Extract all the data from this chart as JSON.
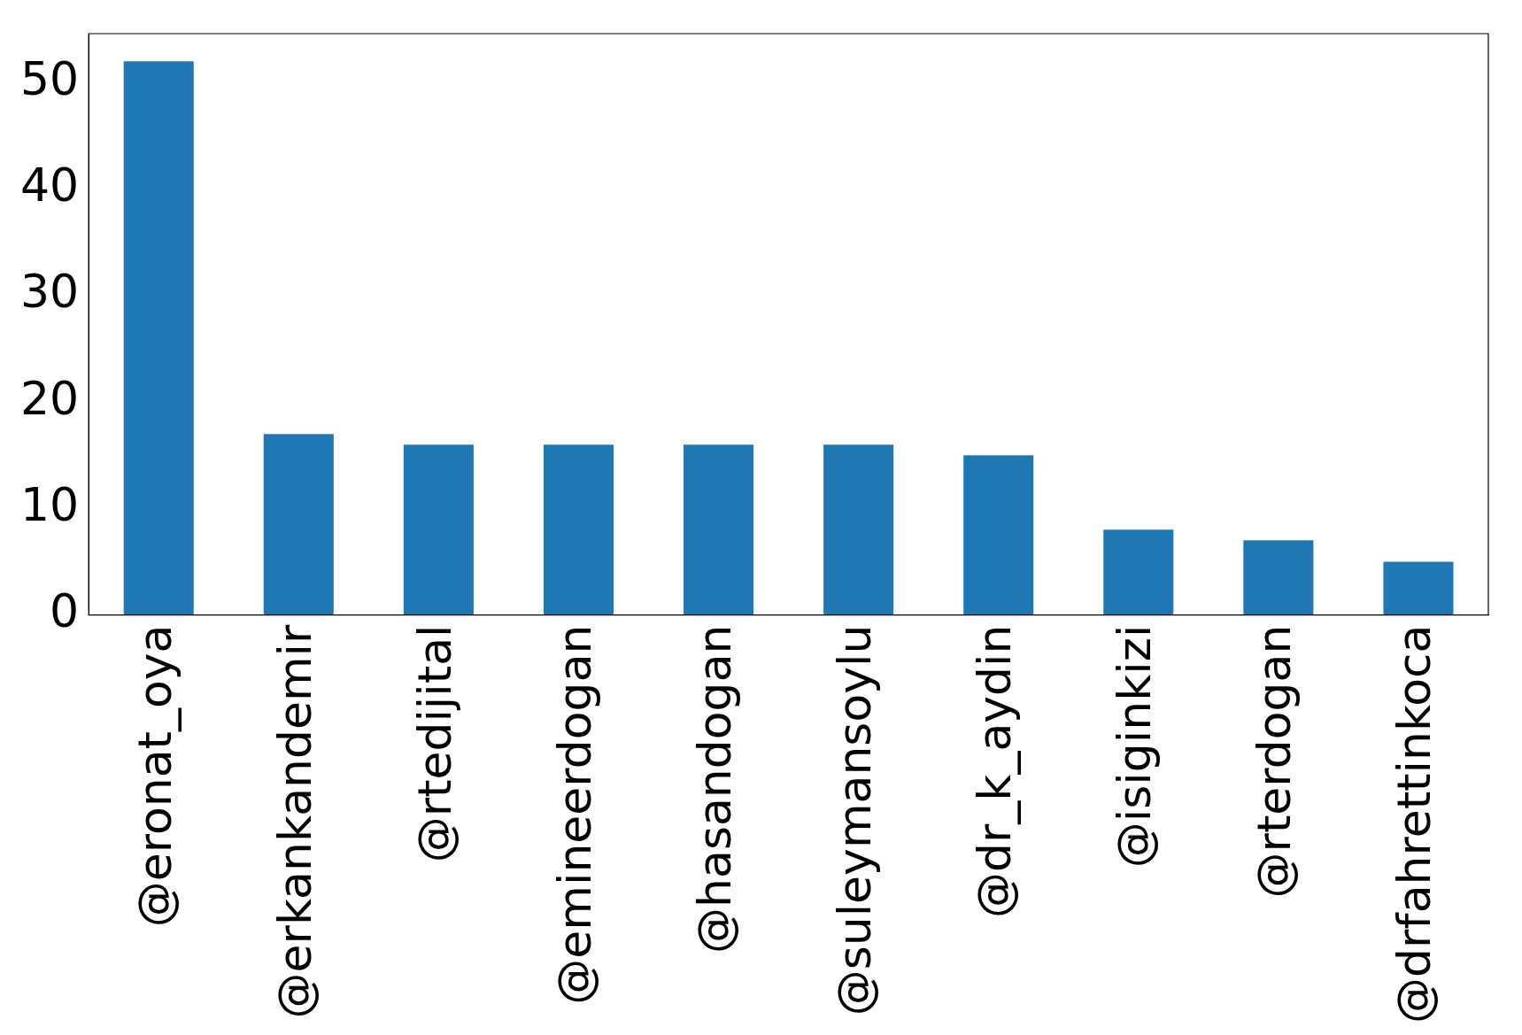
{
  "chart_data": {
    "type": "bar",
    "categories": [
      "@eronat_oya",
      "@erkankandemir",
      "@rtedijital",
      "@emineerdogan",
      "@hasandogan",
      "@suleymansoylu",
      "@dr_k_aydin",
      "@isiginkizi",
      "@rterdogan",
      "@drfahrettinkoca"
    ],
    "values": [
      52,
      17,
      16,
      16,
      16,
      16,
      15,
      8,
      7,
      5
    ],
    "color": "#1f77b4",
    "ylim": [
      0,
      54.6
    ],
    "yticks": [
      0,
      10,
      20,
      30,
      40,
      50
    ],
    "grid": false,
    "legend": false
  }
}
